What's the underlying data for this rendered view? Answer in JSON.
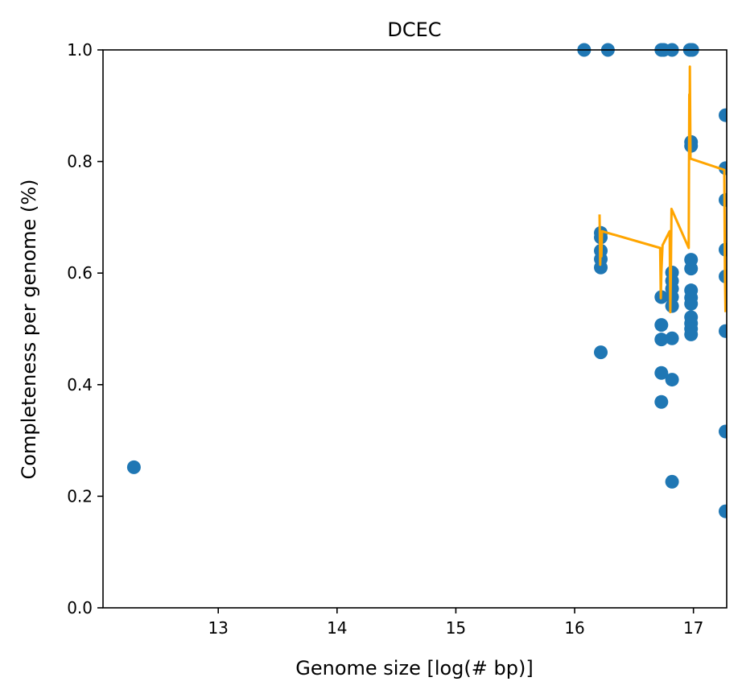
{
  "chart_data": {
    "type": "scatter",
    "title": "DCEC",
    "xlabel": "Genome size [log(# bp)]",
    "ylabel": "Completeness per genome (%)",
    "xlim": [
      12.03,
      17.28
    ],
    "ylim": [
      0.0,
      1.0
    ],
    "x_ticks": [
      13,
      14,
      15,
      16,
      17
    ],
    "y_ticks": [
      0.0,
      0.2,
      0.4,
      0.6,
      0.8,
      1.0
    ],
    "x_tick_labels": [
      "13",
      "14",
      "15",
      "16",
      "17"
    ],
    "y_tick_labels": [
      "0.0",
      "0.2",
      "0.4",
      "0.6",
      "0.8",
      "1.0"
    ],
    "grid": false,
    "legend": "none",
    "colors": {
      "points": "#1f77b4",
      "line": "#ffa500"
    },
    "series": [
      {
        "kind": "scatter",
        "points": [
          [
            12.29,
            0.252
          ],
          [
            16.08,
            1.0
          ],
          [
            16.28,
            1.0
          ],
          [
            16.73,
            1.0
          ],
          [
            16.75,
            1.0
          ],
          [
            16.82,
            1.0
          ],
          [
            16.97,
            1.0
          ],
          [
            16.99,
            1.0
          ],
          [
            16.22,
            0.672
          ],
          [
            16.22,
            0.664
          ],
          [
            16.22,
            0.64
          ],
          [
            16.22,
            0.625
          ],
          [
            16.22,
            0.61
          ],
          [
            16.22,
            0.458
          ],
          [
            16.73,
            0.557
          ],
          [
            16.73,
            0.507
          ],
          [
            16.73,
            0.481
          ],
          [
            16.73,
            0.421
          ],
          [
            16.73,
            0.369
          ],
          [
            16.82,
            0.601
          ],
          [
            16.82,
            0.586
          ],
          [
            16.82,
            0.572
          ],
          [
            16.82,
            0.557
          ],
          [
            16.82,
            0.541
          ],
          [
            16.82,
            0.483
          ],
          [
            16.82,
            0.409
          ],
          [
            16.82,
            0.226
          ],
          [
            16.98,
            0.835
          ],
          [
            16.98,
            0.828
          ],
          [
            16.98,
            0.624
          ],
          [
            16.98,
            0.608
          ],
          [
            16.98,
            0.569
          ],
          [
            16.98,
            0.556
          ],
          [
            16.98,
            0.545
          ],
          [
            16.98,
            0.521
          ],
          [
            16.98,
            0.51
          ],
          [
            16.98,
            0.5
          ],
          [
            16.98,
            0.49
          ],
          [
            17.27,
            0.883
          ],
          [
            17.27,
            0.788
          ],
          [
            17.27,
            0.731
          ],
          [
            17.27,
            0.642
          ],
          [
            17.27,
            0.594
          ],
          [
            17.27,
            0.496
          ],
          [
            17.27,
            0.316
          ],
          [
            17.27,
            0.173
          ]
        ]
      },
      {
        "kind": "line",
        "points": [
          [
            16.21,
            0.705
          ],
          [
            16.215,
            0.615
          ],
          [
            16.22,
            0.655
          ],
          [
            16.225,
            0.63
          ],
          [
            16.23,
            0.675
          ],
          [
            16.72,
            0.645
          ],
          [
            16.725,
            0.555
          ],
          [
            16.73,
            0.6
          ],
          [
            16.735,
            0.625
          ],
          [
            16.74,
            0.65
          ],
          [
            16.8,
            0.675
          ],
          [
            16.805,
            0.53
          ],
          [
            16.81,
            0.6
          ],
          [
            16.815,
            0.715
          ],
          [
            16.96,
            0.645
          ],
          [
            16.962,
            0.78
          ],
          [
            16.965,
            0.92
          ],
          [
            16.968,
            0.84
          ],
          [
            16.97,
            0.97
          ],
          [
            16.975,
            0.805
          ],
          [
            17.26,
            0.785
          ],
          [
            17.265,
            0.6
          ],
          [
            17.27,
            0.53
          ]
        ]
      }
    ]
  }
}
